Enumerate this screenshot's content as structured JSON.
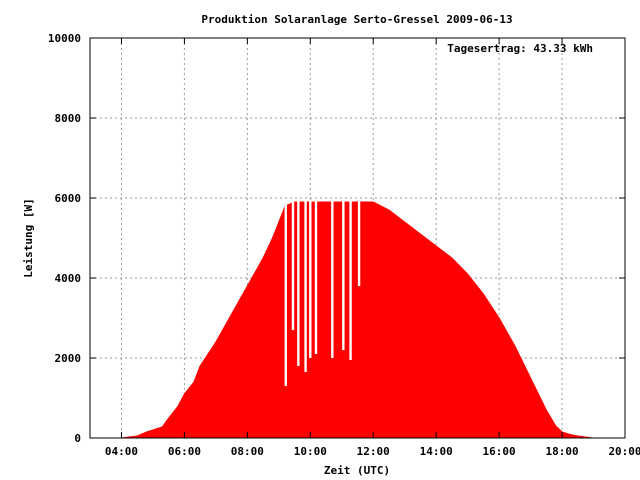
{
  "chart_data": {
    "type": "area",
    "title": "Produktion Solaranlage Serto-Gressel 2009-06-13",
    "xlabel": "Zeit (UTC)",
    "ylabel": "Leistung [W]",
    "annotation": "Tagesertrag: 43.33 kWh",
    "fill_color": "#ff0000",
    "grid": true,
    "xlim": [
      3.0,
      20.0
    ],
    "ylim": [
      0,
      10000
    ],
    "x_ticks": [
      "04:00",
      "06:00",
      "08:00",
      "10:00",
      "12:00",
      "14:00",
      "16:00",
      "18:00",
      "20:00"
    ],
    "y_ticks": [
      "0",
      "2000",
      "4000",
      "6000",
      "8000",
      "10000"
    ],
    "series": [
      {
        "x": [
          4.0,
          4.5,
          4.8,
          5.0,
          5.3,
          5.5,
          5.8,
          6.0,
          6.3,
          6.5,
          7.0,
          7.5,
          8.0,
          8.5,
          8.8,
          9.0,
          9.2,
          9.5,
          10.0,
          10.5,
          11.0,
          11.5,
          12.0,
          12.5,
          13.0,
          13.5,
          14.0,
          14.5,
          15.0,
          15.5,
          16.0,
          16.5,
          17.0,
          17.5,
          17.8,
          18.0,
          18.3,
          18.5,
          18.8,
          19.0
        ],
        "values": [
          0,
          50,
          150,
          200,
          280,
          500,
          800,
          1100,
          1400,
          1800,
          2400,
          3100,
          3800,
          4500,
          5000,
          5400,
          5800,
          5900,
          5900,
          5900,
          5900,
          5900,
          5900,
          5700,
          5400,
          5100,
          4800,
          4500,
          4100,
          3600,
          3000,
          2300,
          1500,
          700,
          300,
          150,
          80,
          50,
          20,
          0
        ]
      }
    ],
    "dips": [
      {
        "x": 9.22,
        "value": 1300
      },
      {
        "x": 9.45,
        "value": 2700
      },
      {
        "x": 9.62,
        "value": 1800
      },
      {
        "x": 9.85,
        "value": 1650
      },
      {
        "x": 10.0,
        "value": 2000
      },
      {
        "x": 10.18,
        "value": 2100
      },
      {
        "x": 10.7,
        "value": 2000
      },
      {
        "x": 11.05,
        "value": 2200
      },
      {
        "x": 11.28,
        "value": 1950
      },
      {
        "x": 11.55,
        "value": 3800
      }
    ]
  }
}
